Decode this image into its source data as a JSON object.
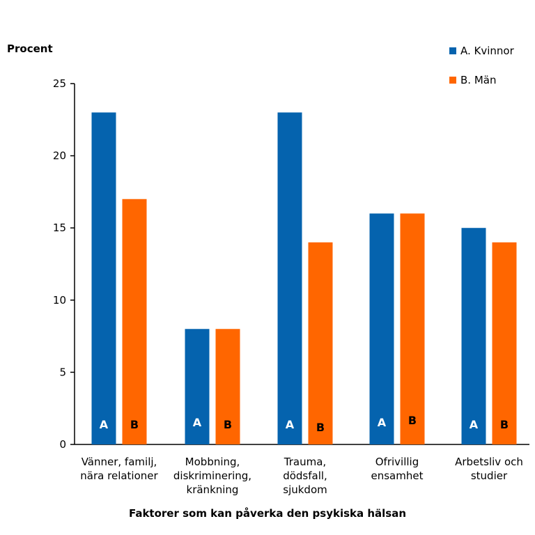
{
  "chart_data": {
    "type": "bar",
    "ylabel": "Procent",
    "xlabel": "Faktorer som kan påverka den psykiska hälsan",
    "ylim": [
      0,
      25
    ],
    "yticks": [
      0,
      5,
      10,
      15,
      20,
      25
    ],
    "grid": false,
    "legend_position": "top-right",
    "categories": [
      [
        "Vänner, familj,",
        "nära relationer"
      ],
      [
        "Mobbning,",
        "diskriminering,",
        "kränkning"
      ],
      [
        "Trauma,",
        "dödsfall,",
        "sjukdom"
      ],
      [
        "Ofrivillig",
        "ensamhet"
      ],
      [
        "Arbetsliv och",
        "studier"
      ]
    ],
    "series": [
      {
        "name": "A. Kvinnor",
        "letter": "A",
        "color": "#0563AE",
        "letter_color": "#ffffff",
        "values": [
          23,
          8,
          23,
          16,
          15
        ]
      },
      {
        "name": "B. Män",
        "letter": "B",
        "color": "#FF6600",
        "letter_color": "#000000",
        "values": [
          17,
          8,
          14,
          16,
          14
        ]
      }
    ]
  }
}
